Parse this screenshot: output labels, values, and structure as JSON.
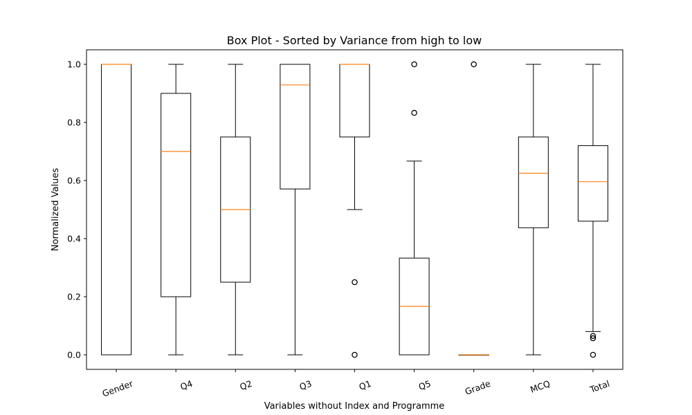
{
  "chart_data": {
    "type": "box",
    "title": "Box Plot - Sorted by Variance from high to low",
    "xlabel": "Variables without Index and Programme",
    "ylabel": "Normalized Values",
    "ylim": [
      -0.05,
      1.05
    ],
    "yticks": [
      "0.0",
      "0.2",
      "0.4",
      "0.6",
      "0.8",
      "1.0"
    ],
    "xtick_rotation_deg": 20,
    "grid": false,
    "colors": {
      "box": "#000000",
      "median": "#ff7f0e"
    },
    "categories": [
      "Gender",
      "Q4",
      "Q2",
      "Q3",
      "Q1",
      "Q5",
      "Grade",
      "MCQ",
      "Total"
    ],
    "boxes": [
      {
        "name": "Gender",
        "whisker_low": 0.0,
        "q1": 0.0,
        "median": 1.0,
        "q3": 1.0,
        "whisker_high": 1.0,
        "outliers": []
      },
      {
        "name": "Q4",
        "whisker_low": 0.0,
        "q1": 0.2,
        "median": 0.7,
        "q3": 0.9,
        "whisker_high": 1.0,
        "outliers": []
      },
      {
        "name": "Q2",
        "whisker_low": 0.0,
        "q1": 0.25,
        "median": 0.5,
        "q3": 0.75,
        "whisker_high": 1.0,
        "outliers": []
      },
      {
        "name": "Q3",
        "whisker_low": 0.0,
        "q1": 0.571,
        "median": 0.929,
        "q3": 1.0,
        "whisker_high": 1.0,
        "outliers": []
      },
      {
        "name": "Q1",
        "whisker_low": 0.5,
        "q1": 0.75,
        "median": 1.0,
        "q3": 1.0,
        "whisker_high": 1.0,
        "outliers": [
          0.25,
          0.0
        ]
      },
      {
        "name": "Q5",
        "whisker_low": 0.0,
        "q1": 0.0,
        "median": 0.167,
        "q3": 0.333,
        "whisker_high": 0.667,
        "outliers": [
          0.833,
          1.0
        ]
      },
      {
        "name": "Grade",
        "whisker_low": 0.0,
        "q1": 0.0,
        "median": 0.0,
        "q3": 0.0,
        "whisker_high": 0.0,
        "outliers": [
          1.0
        ]
      },
      {
        "name": "MCQ",
        "whisker_low": 0.0,
        "q1": 0.4375,
        "median": 0.625,
        "q3": 0.75,
        "whisker_high": 1.0,
        "outliers": []
      },
      {
        "name": "Total",
        "whisker_low": 0.08,
        "q1": 0.46,
        "median": 0.596,
        "q3": 0.72,
        "whisker_high": 1.0,
        "outliers": [
          0.065,
          0.057,
          0.0
        ]
      }
    ]
  }
}
